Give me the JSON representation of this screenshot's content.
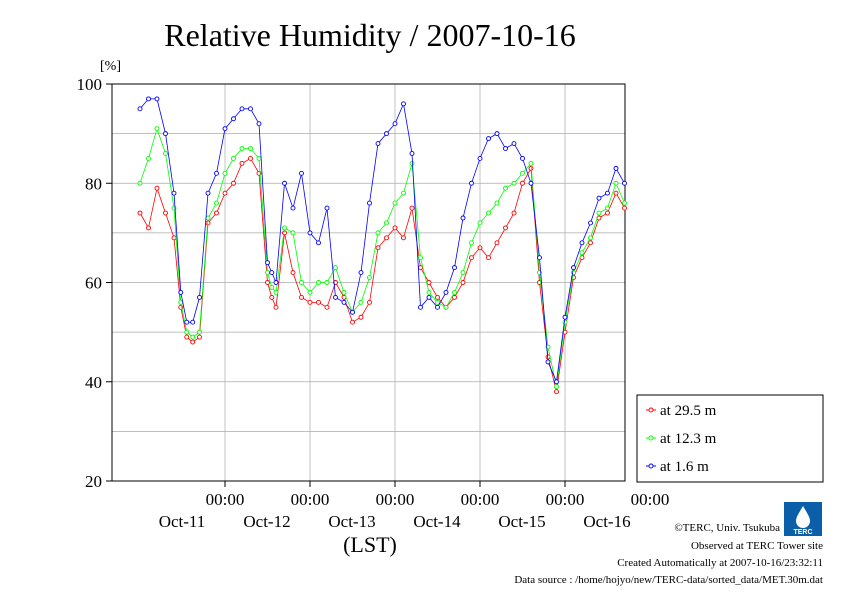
{
  "chart_data": {
    "type": "line",
    "title": "Relative Humidity / 2007-10-16",
    "ylabel": "[%]",
    "xlabel": "(LST)",
    "ylim": [
      20,
      100
    ],
    "yticks": [
      20,
      40,
      60,
      80,
      100
    ],
    "xlim": [
      0,
      6
    ],
    "x_unit": "days from 2007-10-10 00:00 LST",
    "xticks": [
      {
        "x": 1,
        "time": "00:00",
        "date": "Oct-11"
      },
      {
        "x": 2,
        "time": "00:00",
        "date": "Oct-12"
      },
      {
        "x": 3,
        "time": "00:00",
        "date": "Oct-13"
      },
      {
        "x": 4,
        "time": "00:00",
        "date": "Oct-14"
      },
      {
        "x": 5,
        "time": "00:00",
        "date": "Oct-15"
      },
      {
        "x": 6,
        "time": "00:00",
        "date": "Oct-16"
      }
    ],
    "grid": true,
    "legend": "right",
    "series": [
      {
        "name": "at 29.5 m",
        "color": "#ff0000",
        "x": [
          0,
          0.1,
          0.2,
          0.3,
          0.4,
          0.48,
          0.55,
          0.62,
          0.7,
          0.8,
          0.9,
          1.0,
          1.1,
          1.2,
          1.3,
          1.4,
          1.5,
          1.55,
          1.6,
          1.7,
          1.8,
          1.9,
          2.0,
          2.1,
          2.2,
          2.3,
          2.4,
          2.5,
          2.6,
          2.7,
          2.8,
          2.9,
          3.0,
          3.1,
          3.2,
          3.3,
          3.4,
          3.5,
          3.6,
          3.7,
          3.8,
          3.9,
          4.0,
          4.1,
          4.2,
          4.3,
          4.4,
          4.5,
          4.6,
          4.7,
          4.8,
          4.9,
          5.0,
          5.1,
          5.2,
          5.3,
          5.4,
          5.5,
          5.6,
          5.7,
          5.8,
          5.9,
          6.0
        ],
        "y": [
          74,
          71,
          79,
          74,
          69,
          55,
          49,
          48,
          49,
          72,
          74,
          78,
          80,
          84,
          85,
          82,
          60,
          57,
          55,
          70,
          62,
          57,
          56,
          56,
          55,
          60,
          57,
          52,
          53,
          56,
          67,
          69,
          71,
          69,
          75,
          63,
          60,
          57,
          55,
          57,
          60,
          65,
          67,
          65,
          68,
          71,
          74,
          80,
          83,
          60,
          45,
          38,
          50,
          61,
          65,
          68,
          73,
          74,
          78,
          75,
          72,
          70,
          71
        ]
      },
      {
        "name": "at 12.3 m",
        "color": "#00ff00",
        "x": [
          0,
          0.1,
          0.2,
          0.3,
          0.4,
          0.48,
          0.55,
          0.62,
          0.7,
          0.8,
          0.9,
          1.0,
          1.1,
          1.2,
          1.3,
          1.4,
          1.5,
          1.55,
          1.6,
          1.7,
          1.8,
          1.9,
          2.0,
          2.1,
          2.2,
          2.3,
          2.4,
          2.5,
          2.6,
          2.7,
          2.8,
          2.9,
          3.0,
          3.1,
          3.2,
          3.3,
          3.4,
          3.5,
          3.6,
          3.7,
          3.8,
          3.9,
          4.0,
          4.1,
          4.2,
          4.3,
          4.4,
          4.5,
          4.6,
          4.7,
          4.8,
          4.9,
          5.0,
          5.1,
          5.2,
          5.3,
          5.4,
          5.5,
          5.6,
          5.7,
          5.8,
          5.9,
          6.0
        ],
        "y": [
          80,
          85,
          91,
          86,
          75,
          56,
          50,
          49,
          50,
          73,
          76,
          82,
          85,
          87,
          87,
          85,
          62,
          59,
          58,
          71,
          70,
          60,
          58,
          60,
          60,
          63,
          58,
          54,
          56,
          61,
          70,
          72,
          76,
          78,
          84,
          65,
          58,
          56,
          55,
          58,
          62,
          68,
          72,
          74,
          76,
          79,
          80,
          82,
          84,
          62,
          47,
          39,
          52,
          62,
          66,
          69,
          74,
          75,
          80,
          76,
          73,
          71,
          72
        ]
      },
      {
        "name": "at 1.6 m",
        "color": "#0000ff",
        "x": [
          0,
          0.1,
          0.2,
          0.3,
          0.4,
          0.48,
          0.55,
          0.62,
          0.7,
          0.8,
          0.9,
          1.0,
          1.1,
          1.2,
          1.3,
          1.4,
          1.5,
          1.55,
          1.6,
          1.7,
          1.8,
          1.9,
          2.0,
          2.1,
          2.2,
          2.3,
          2.4,
          2.5,
          2.6,
          2.7,
          2.8,
          2.9,
          3.0,
          3.1,
          3.2,
          3.3,
          3.4,
          3.5,
          3.6,
          3.7,
          3.8,
          3.9,
          4.0,
          4.1,
          4.2,
          4.3,
          4.4,
          4.5,
          4.6,
          4.7,
          4.8,
          4.9,
          5.0,
          5.1,
          5.2,
          5.3,
          5.4,
          5.5,
          5.6,
          5.7,
          5.8,
          5.9,
          6.0
        ],
        "y": [
          95,
          97,
          97,
          90,
          78,
          58,
          52,
          52,
          57,
          78,
          82,
          91,
          93,
          95,
          95,
          92,
          64,
          62,
          60,
          80,
          75,
          82,
          70,
          68,
          75,
          57,
          56,
          54,
          62,
          76,
          88,
          90,
          92,
          96,
          86,
          55,
          57,
          55,
          58,
          63,
          73,
          80,
          85,
          89,
          90,
          87,
          88,
          85,
          80,
          65,
          44,
          40,
          53,
          63,
          68,
          72,
          77,
          78,
          83,
          80,
          75,
          73,
          76
        ]
      }
    ]
  },
  "page": {
    "copyright": "©TERC, Univ. Tsukuba",
    "observed": "Observed at TERC Tower site",
    "created": "Created Automatically at 2007-10-16/23:32:11",
    "source": "Data source : /home/hojyo/new/TERC-data/sorted_data/MET.30m.dat",
    "logo_text": "TERC"
  }
}
